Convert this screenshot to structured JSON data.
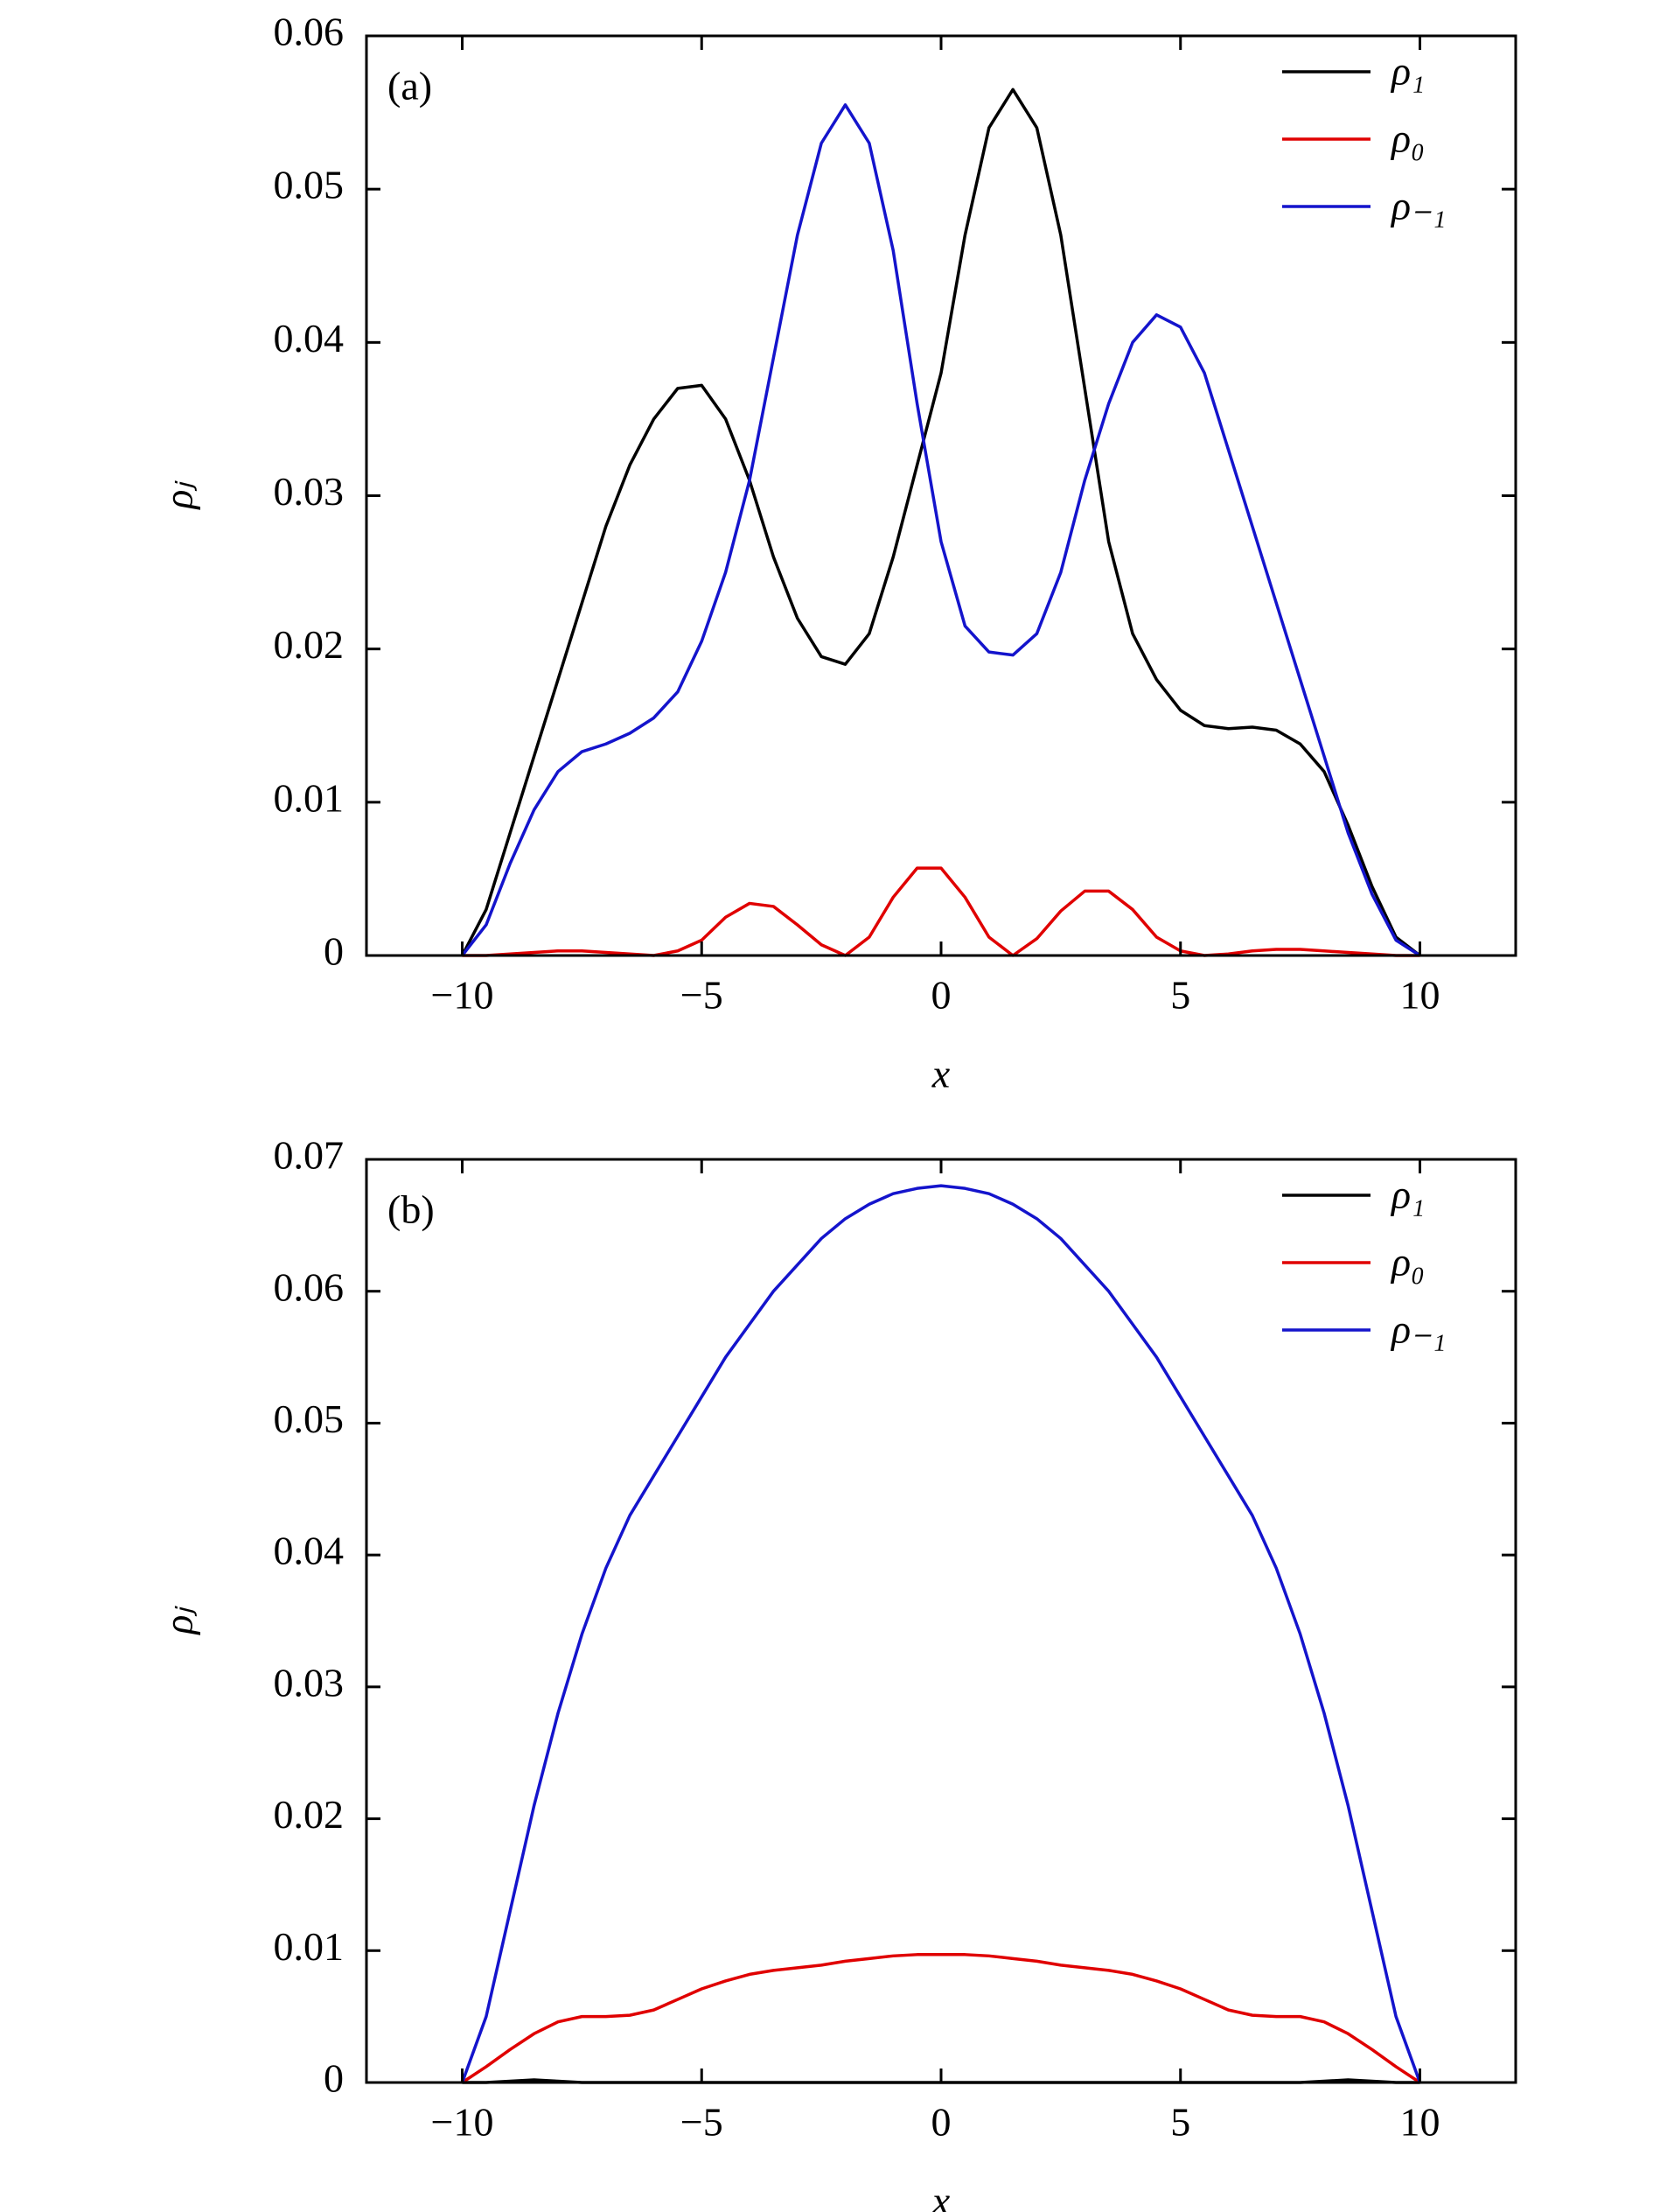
{
  "chart_data": [
    {
      "type": "line",
      "title": "(a)",
      "xlabel": "x",
      "ylabel": "ρⱼ",
      "legend": "upper right",
      "x": [
        -10,
        -9.5,
        -9,
        -8.5,
        -8,
        -7.5,
        -7,
        -6.5,
        -6,
        -5.5,
        -5,
        -4.5,
        -4,
        -3.5,
        -3,
        -2.5,
        -2,
        -1.5,
        -1,
        -0.5,
        0,
        0.5,
        1,
        1.5,
        2,
        2.5,
        3,
        3.5,
        4,
        4.5,
        5,
        5.5,
        6,
        6.5,
        7,
        7.5,
        8,
        8.5,
        9,
        9.5,
        10
      ],
      "series": [
        {
          "name": "ρ₁",
          "color": "#000000",
          "values": [
            0,
            0.003,
            0.008,
            0.013,
            0.018,
            0.023,
            0.028,
            0.032,
            0.035,
            0.037,
            0.0372,
            0.035,
            0.031,
            0.026,
            0.022,
            0.0195,
            0.019,
            0.021,
            0.026,
            0.032,
            0.038,
            0.047,
            0.054,
            0.0565,
            0.054,
            0.047,
            0.037,
            0.027,
            0.021,
            0.018,
            0.016,
            0.015,
            0.0148,
            0.0149,
            0.0147,
            0.0138,
            0.012,
            0.0085,
            0.0045,
            0.0012,
            0
          ]
        },
        {
          "name": "ρ₀",
          "color": "#e00000",
          "values": [
            0,
            0,
            0.0001,
            0.0002,
            0.0003,
            0.0003,
            0.0002,
            0.0001,
            0,
            0.0003,
            0.001,
            0.0025,
            0.0034,
            0.0032,
            0.002,
            0.0007,
            0,
            0.0012,
            0.0038,
            0.0057,
            0.0057,
            0.0038,
            0.0012,
            0,
            0.0011,
            0.0029,
            0.0042,
            0.0042,
            0.003,
            0.0012,
            0.0003,
            0,
            0.0001,
            0.0003,
            0.0004,
            0.0004,
            0.0003,
            0.0002,
            0.0001,
            0,
            0
          ]
        },
        {
          "name": "ρ₋₁",
          "color": "#1414cc",
          "values": [
            0,
            0.002,
            0.006,
            0.0095,
            0.012,
            0.0133,
            0.0138,
            0.0145,
            0.0155,
            0.0172,
            0.0205,
            0.025,
            0.031,
            0.039,
            0.047,
            0.053,
            0.0555,
            0.053,
            0.046,
            0.036,
            0.027,
            0.0215,
            0.0198,
            0.0196,
            0.021,
            0.025,
            0.031,
            0.036,
            0.04,
            0.0418,
            0.041,
            0.038,
            0.033,
            0.028,
            0.023,
            0.018,
            0.013,
            0.008,
            0.004,
            0.001,
            0
          ]
        }
      ],
      "xlim": [
        -12,
        12
      ],
      "ylim": [
        0,
        0.06
      ],
      "xticks": [
        {
          "value": -10,
          "label": "−10"
        },
        {
          "value": -5,
          "label": "−5"
        },
        0,
        5,
        10
      ],
      "yticks": [
        0,
        0.01,
        0.02,
        0.03,
        0.04,
        0.05,
        0.06
      ]
    },
    {
      "type": "line",
      "title": "(b)",
      "xlabel": "x",
      "ylabel": "ρⱼ",
      "legend": "upper right",
      "x": [
        -10,
        -9.5,
        -9,
        -8.5,
        -8,
        -7.5,
        -7,
        -6.5,
        -6,
        -5.5,
        -5,
        -4.5,
        -4,
        -3.5,
        -3,
        -2.5,
        -2,
        -1.5,
        -1,
        -0.5,
        0,
        0.5,
        1,
        1.5,
        2,
        2.5,
        3,
        3.5,
        4,
        4.5,
        5,
        5.5,
        6,
        6.5,
        7,
        7.5,
        8,
        8.5,
        9,
        9.5,
        10
      ],
      "series": [
        {
          "name": "ρ₁",
          "color": "#000000",
          "values": [
            0,
            0,
            0.0001,
            0.0002,
            0.0001,
            0,
            0,
            0,
            0,
            0,
            0,
            0,
            0,
            0,
            0,
            0,
            0,
            0,
            0,
            0,
            0,
            0,
            0,
            0,
            0,
            0,
            0,
            0,
            0,
            0,
            0,
            0,
            0,
            0,
            0,
            0,
            0.0001,
            0.0002,
            0.0001,
            0,
            0
          ]
        },
        {
          "name": "ρ₀",
          "color": "#e00000",
          "values": [
            0,
            0.0012,
            0.0025,
            0.0037,
            0.0046,
            0.005,
            0.005,
            0.0051,
            0.0055,
            0.0063,
            0.0071,
            0.0077,
            0.0082,
            0.0085,
            0.0087,
            0.0089,
            0.0092,
            0.0094,
            0.0096,
            0.0097,
            0.0097,
            0.0097,
            0.0096,
            0.0094,
            0.0092,
            0.0089,
            0.0087,
            0.0085,
            0.0082,
            0.0077,
            0.0071,
            0.0063,
            0.0055,
            0.0051,
            0.005,
            0.005,
            0.0046,
            0.0037,
            0.0025,
            0.0012,
            0
          ]
        },
        {
          "name": "ρ₋₁",
          "color": "#1414cc",
          "values": [
            0,
            0.005,
            0.013,
            0.021,
            0.028,
            0.034,
            0.039,
            0.043,
            0.046,
            0.049,
            0.052,
            0.055,
            0.0575,
            0.06,
            0.062,
            0.064,
            0.0655,
            0.0666,
            0.0674,
            0.0678,
            0.068,
            0.0678,
            0.0674,
            0.0666,
            0.0655,
            0.064,
            0.062,
            0.06,
            0.0575,
            0.055,
            0.052,
            0.049,
            0.046,
            0.043,
            0.039,
            0.034,
            0.028,
            0.021,
            0.013,
            0.005,
            0
          ]
        }
      ],
      "xlim": [
        -12,
        12
      ],
      "ylim": [
        0,
        0.07
      ],
      "xticks": [
        {
          "value": -10,
          "label": "−10"
        },
        {
          "value": -5,
          "label": "−5"
        },
        0,
        5,
        10
      ],
      "yticks": [
        0,
        0.01,
        0.02,
        0.03,
        0.04,
        0.05,
        0.06,
        0.07
      ]
    }
  ]
}
